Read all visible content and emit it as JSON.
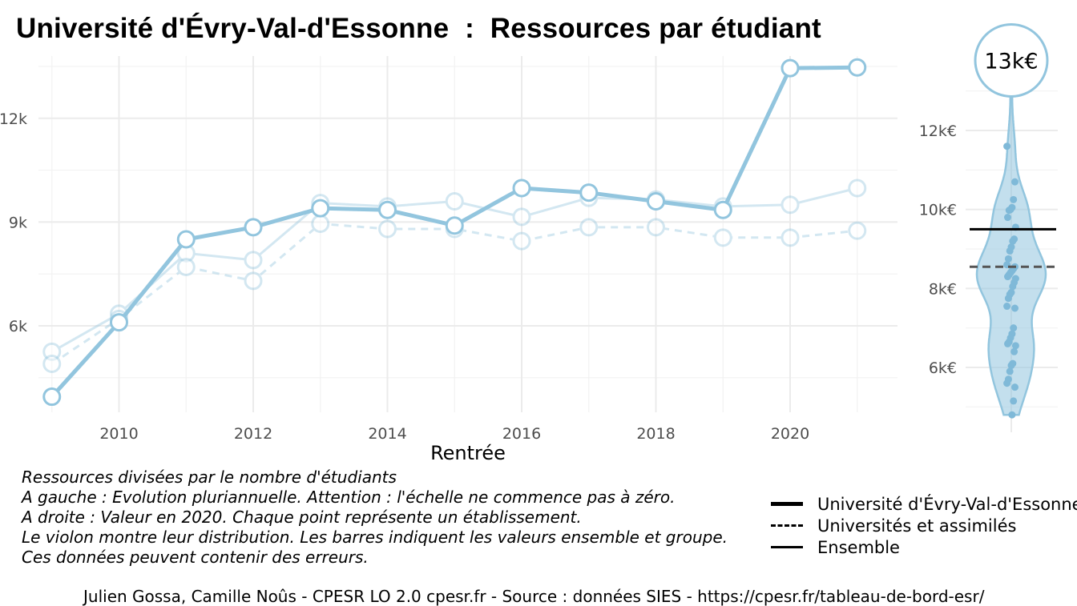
{
  "title": "Université d'Évry-Val-d'Essonne  :  Ressources par étudiant",
  "chart_data": [
    {
      "type": "line",
      "xlabel": "Rentrée",
      "ylabel": "",
      "xlim": [
        2008.8,
        2021.6
      ],
      "ylim": [
        3500,
        13800
      ],
      "x_ticks": [
        2010,
        2012,
        2014,
        2016,
        2018,
        2020
      ],
      "x_tick_labels": [
        "2010",
        "2012",
        "2014",
        "2016",
        "2018",
        "2020"
      ],
      "y_ticks": [
        6000,
        9000,
        12000
      ],
      "y_tick_labels": [
        "6k",
        "9k",
        "12k"
      ],
      "grid": true,
      "x": [
        2009,
        2010,
        2011,
        2012,
        2013,
        2014,
        2015,
        2016,
        2017,
        2018,
        2019,
        2020,
        2021
      ],
      "series": [
        {
          "name": "Université d'Évry-Val-d'Essonne",
          "values": [
            3950,
            6100,
            8500,
            8850,
            9400,
            9350,
            8900,
            9980,
            9850,
            9600,
            9350,
            13450,
            13470
          ],
          "style": "solid-thick",
          "color": "#92c5de",
          "opacity": 1.0
        },
        {
          "name": "Universités et assimilés",
          "values": [
            4900,
            6200,
            7700,
            7300,
            8950,
            8800,
            8800,
            8450,
            8850,
            8850,
            8550,
            8550,
            8750
          ],
          "style": "dashed",
          "color": "#92c5de",
          "opacity": 0.4
        },
        {
          "name": "Ensemble",
          "values": [
            5250,
            6350,
            8100,
            7900,
            9550,
            9450,
            9600,
            9150,
            9700,
            9650,
            9450,
            9500,
            9980
          ],
          "style": "solid-thin",
          "color": "#92c5de",
          "opacity": 0.4
        }
      ]
    },
    {
      "type": "violin",
      "ylim": [
        4800,
        13400
      ],
      "y_ticks": [
        6000,
        8000,
        10000,
        12000
      ],
      "y_tick_labels": [
        "6k€",
        "8k€",
        "10k€",
        "12k€"
      ],
      "highlight_label": "13k€",
      "highlight_value": 13450,
      "reference_lines": [
        {
          "name": "Ensemble",
          "value": 9500,
          "style": "solid"
        },
        {
          "name": "Universités et assimilés",
          "value": 8550,
          "style": "dashed"
        }
      ],
      "points": [
        11600,
        10700,
        10250,
        10050,
        10000,
        9980,
        9800,
        9550,
        9250,
        9200,
        9050,
        8950,
        8750,
        8600,
        8550,
        8500,
        8450,
        8400,
        8350,
        8300,
        8250,
        8150,
        8050,
        7900,
        7850,
        7750,
        7550,
        7500,
        7000,
        6850,
        6750,
        6650,
        6600,
        6550,
        6400,
        6100,
        6050,
        5900,
        5700,
        5600,
        5500,
        5150,
        4800
      ],
      "color": "#92c5de"
    }
  ],
  "caption": [
    "Ressources divisées par le nombre d'étudiants",
    "A gauche : Evolution pluriannuelle. Attention : l'échelle ne commence pas à zéro.",
    "A droite : Valeur en 2020. Chaque point représente un établissement.",
    "Le violon montre leur distribution. Les barres indiquent les valeurs ensemble et groupe.",
    "Ces données peuvent contenir des erreurs."
  ],
  "legend": {
    "items": [
      {
        "label": "Université d'Évry-Val-d'Essonne",
        "style": "thick"
      },
      {
        "label": "Universités et assimilés",
        "style": "dashed"
      },
      {
        "label": "Ensemble",
        "style": "thin"
      }
    ]
  },
  "credit": "Julien Gossa, Camille Noûs - CPESR LO 2.0 cpesr.fr - Source : données SIES - https://cpesr.fr/tableau-de-bord-esr/"
}
